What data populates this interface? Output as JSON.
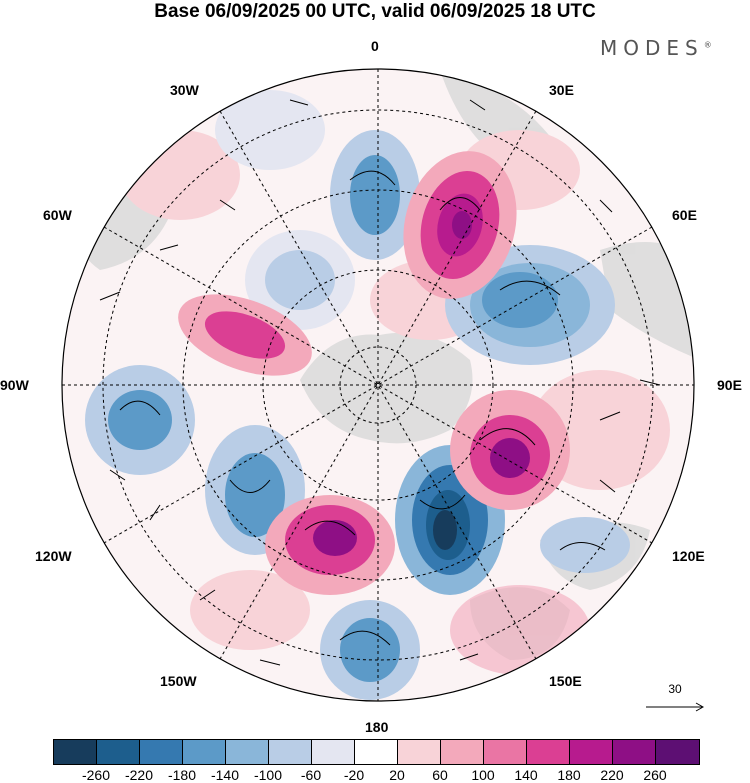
{
  "title": "Base 06/09/2025 00 UTC, valid 06/09/2025 18 UTC",
  "brand": "MODES",
  "brand_mark": "®",
  "longitude_labels": {
    "lon_0": "0",
    "lon_30e": "30E",
    "lon_60e": "60E",
    "lon_90e": "90E",
    "lon_120e": "120E",
    "lon_150e": "150E",
    "lon_180": "180",
    "lon_150w": "150W",
    "lon_120w": "120W",
    "lon_90w": "90W",
    "lon_60w": "60W",
    "lon_30w": "30W"
  },
  "reference_vector": "30",
  "colorbar": {
    "ticks": [
      "-260",
      "-220",
      "-180",
      "-140",
      "-100",
      "-60",
      "-20",
      "20",
      "60",
      "100",
      "140",
      "180",
      "220",
      "260"
    ],
    "colors": [
      "#173c5c",
      "#1d5e8d",
      "#3579b0",
      "#5c9ac8",
      "#8ab6d9",
      "#b9cde6",
      "#e4e6f1",
      "#ffffff",
      "#f8d3d8",
      "#f3a9bb",
      "#ea75a4",
      "#db3f93",
      "#b71b8e",
      "#8e0f85",
      "#5d0f73"
    ]
  }
}
